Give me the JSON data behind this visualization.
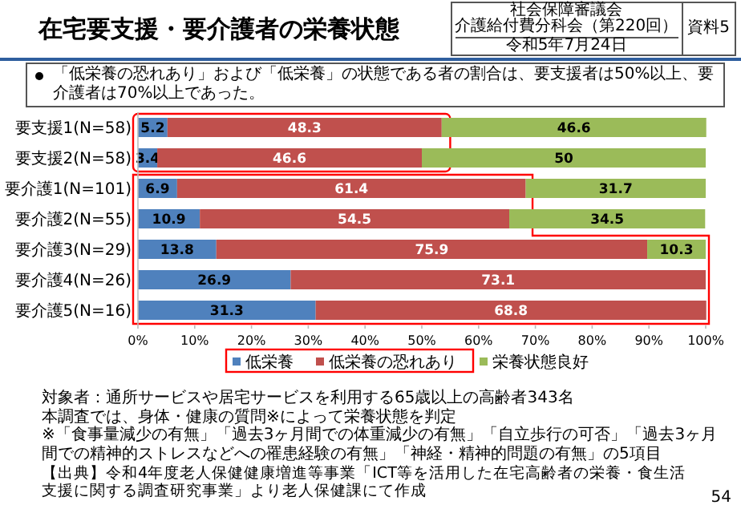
{
  "chart_data": {
    "type": "bar",
    "orientation": "horizontal",
    "stacked": true,
    "data_labels": true,
    "legend": "bottom",
    "title": "在宅要支援・要介護者の栄養状態",
    "subtitle": "「低栄養の恐れあり」および「低栄養」の状態である者の割合は、要支援者は50%以上、要介護者は70%以上であった。",
    "categories": [
      "要支援1(N=58)",
      "要支援2(N=58)",
      "要介護1(N=101)",
      "要介護2(N=55)",
      "要介護3(N=29)",
      "要介護4(N=26)",
      "要介護5(N=16)"
    ],
    "series": [
      {
        "name": "低栄養",
        "color": "#4f81bd",
        "values": [
          5.2,
          3.4,
          6.9,
          10.9,
          13.8,
          26.9,
          31.3
        ]
      },
      {
        "name": "低栄養の恐れあり",
        "color": "#c0504d",
        "values": [
          48.3,
          46.6,
          61.4,
          54.5,
          75.9,
          73.1,
          68.8
        ]
      },
      {
        "name": "栄養状態良好",
        "color": "#9bbb59",
        "values": [
          46.6,
          50,
          31.7,
          34.5,
          10.3,
          null,
          null
        ]
      }
    ],
    "xlim": [
      0,
      100
    ],
    "xticks": [
      {
        "value": 0,
        "label": "0%"
      },
      {
        "value": 10,
        "label": "10%"
      },
      {
        "value": 20,
        "label": "20%"
      },
      {
        "value": 30,
        "label": "30%"
      },
      {
        "value": 40,
        "label": "40%"
      },
      {
        "value": 50,
        "label": "50%"
      },
      {
        "value": 60,
        "label": "60%"
      },
      {
        "value": 70,
        "label": "70%"
      },
      {
        "value": 80,
        "label": "80%"
      },
      {
        "value": 90,
        "label": "90%"
      },
      {
        "value": 100,
        "label": "100%"
      }
    ],
    "annotations": [
      "社会保障審議会",
      "介護給付費分科会（第220回）",
      "令和5年7月24日",
      "資料5",
      "対象者：通所サービスや居宅サービスを利用する65歳以上の高齢者343名",
      "本調査では、身体・健康の質問※によって栄養状態を判定",
      "※「食事量減少の有無」「過去3ヶ月間での体重減少の有無」「自立歩行の可否」「過去3ヶ月間での精神的ストレスなどへの罹患経験の有無」「神経・精神的問題の有無」の5項目",
      "【出典】令和4年度老人保健健康増進等事業「ICT等を活用した在宅高齢者の栄養・食生活支援に関する調査研究事業」より老人保健課にて作成",
      "54"
    ]
  }
}
